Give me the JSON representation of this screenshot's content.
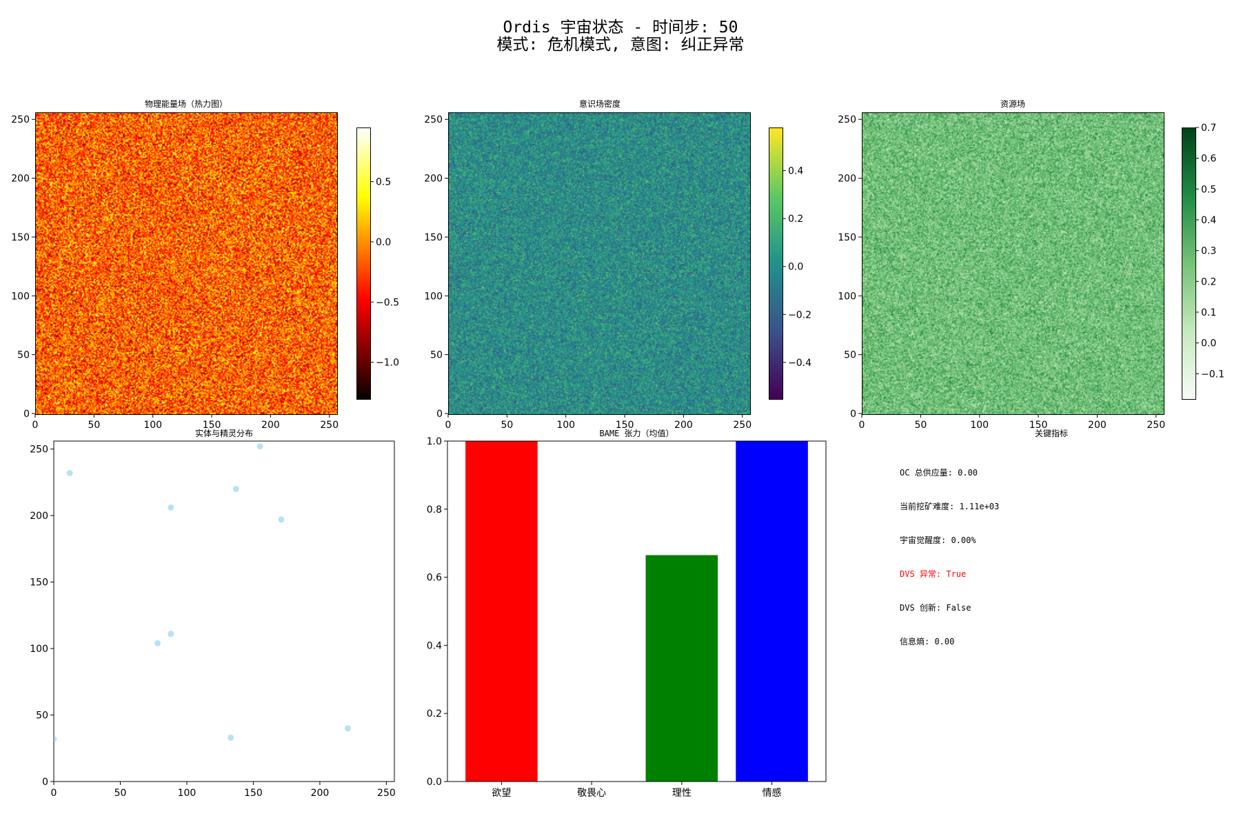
{
  "figure": {
    "title_line1": "Ordis 宇宙状态 - 时间步: 50",
    "title_line2": "模式: 危机模式, 意图: 纠正异常"
  },
  "chart_data": [
    {
      "id": "physical",
      "type": "heatmap",
      "title": "物理能量场（热力图）",
      "colormap": "hot",
      "xlim": [
        0,
        256
      ],
      "ylim": [
        0,
        256
      ],
      "xticks": [
        0,
        50,
        100,
        150,
        200,
        250
      ],
      "yticks": [
        0,
        50,
        100,
        150,
        200,
        250
      ],
      "grid": false,
      "colorbar": {
        "range": [
          -1.3,
          0.95
        ],
        "ticks": [
          -1.0,
          -0.5,
          0.0,
          0.5
        ],
        "tick_labels": [
          "−1.0",
          "−0.5",
          "0.0",
          "0.5"
        ]
      },
      "value_mean": -0.15,
      "value_spread": 0.32
    },
    {
      "id": "consciousness",
      "type": "heatmap",
      "title": "意识场密度",
      "colormap": "viridis",
      "xlim": [
        0,
        256
      ],
      "ylim": [
        0,
        256
      ],
      "xticks": [
        0,
        50,
        100,
        150,
        200,
        250
      ],
      "yticks": [
        0,
        50,
        100,
        150,
        200,
        250
      ],
      "grid": false,
      "colorbar": {
        "range": [
          -0.55,
          0.58
        ],
        "ticks": [
          -0.4,
          -0.2,
          0.0,
          0.2,
          0.4
        ],
        "tick_labels": [
          "−0.4",
          "−0.2",
          "0.0",
          "0.2",
          "0.4"
        ]
      },
      "value_mean": 0.0,
      "value_spread": 0.12
    },
    {
      "id": "resource",
      "type": "heatmap",
      "title": "资源场",
      "colormap": "Greens",
      "xlim": [
        0,
        256
      ],
      "ylim": [
        0,
        256
      ],
      "xticks": [
        0,
        50,
        100,
        150,
        200,
        250
      ],
      "yticks": [
        0,
        50,
        100,
        150,
        200,
        250
      ],
      "grid": false,
      "colorbar": {
        "range": [
          -0.18,
          0.7
        ],
        "ticks": [
          -0.1,
          0.0,
          0.1,
          0.2,
          0.3,
          0.4,
          0.5,
          0.6,
          0.7
        ],
        "tick_labels": [
          "−0.1",
          "0.0",
          "0.1",
          "0.2",
          "0.3",
          "0.4",
          "0.5",
          "0.6",
          "0.7"
        ]
      },
      "value_mean": 0.27,
      "value_spread": 0.1
    },
    {
      "id": "entities",
      "type": "scatter",
      "title": "实体与精灵分布",
      "xlim": [
        0,
        256
      ],
      "ylim": [
        0,
        256
      ],
      "xticks": [
        0,
        50,
        100,
        150,
        200,
        250
      ],
      "yticks": [
        0,
        50,
        100,
        150,
        200,
        250
      ],
      "grid": false,
      "color": "#87CEEB",
      "points": [
        {
          "x": 0,
          "y": 32
        },
        {
          "x": 12,
          "y": 232
        },
        {
          "x": 155,
          "y": 252
        },
        {
          "x": 137,
          "y": 220
        },
        {
          "x": 88,
          "y": 206
        },
        {
          "x": 171,
          "y": 197
        },
        {
          "x": 78,
          "y": 104
        },
        {
          "x": 88,
          "y": 111
        },
        {
          "x": 133,
          "y": 33
        },
        {
          "x": 221,
          "y": 40
        }
      ]
    },
    {
      "id": "bame",
      "type": "bar",
      "title": "BAME 张力（均值）",
      "categories": [
        "欲望",
        "敬畏心",
        "理性",
        "情感"
      ],
      "values": [
        1.0,
        0.0,
        0.665,
        1.0
      ],
      "colors": [
        "#ff0000",
        "#ffa500",
        "#008000",
        "#0000ff"
      ],
      "ylim": [
        0,
        1.0
      ],
      "yticks": [
        0.0,
        0.2,
        0.4,
        0.6,
        0.8,
        1.0
      ],
      "ytick_labels": [
        "0.0",
        "0.2",
        "0.4",
        "0.6",
        "0.8",
        "1.0"
      ],
      "grid": false
    }
  ],
  "metrics_panel": {
    "title": "关键指标",
    "items": [
      {
        "text": "OC 总供应量: 0.00",
        "color": "#000000"
      },
      {
        "text": "当前挖矿难度: 1.11e+03",
        "color": "#000000"
      },
      {
        "text": "宇宙觉醒度: 0.00%",
        "color": "#000000"
      },
      {
        "text": "DVS 异常: True",
        "color": "#ff0000"
      },
      {
        "text": "DVS 创新: False",
        "color": "#000000"
      },
      {
        "text": "信息熵: 0.00",
        "color": "#000000"
      }
    ]
  }
}
